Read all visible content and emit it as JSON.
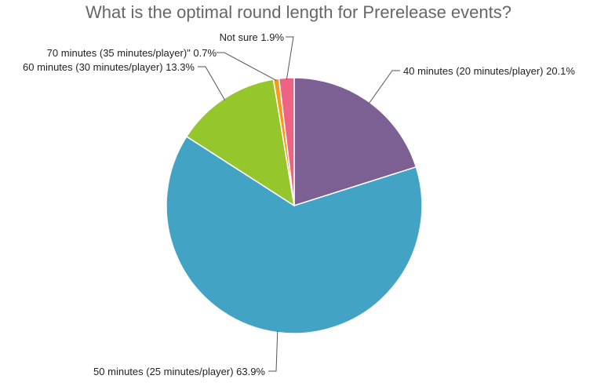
{
  "chart_data": {
    "type": "pie",
    "title": "What is the optimal round length for Prerelease events?",
    "slices": [
      {
        "label": "40 minutes (20 minutes/player)",
        "value": 20.1,
        "display": "20.1%",
        "color": "#7d6093"
      },
      {
        "label": "50 minutes (25 minutes/player)",
        "value": 63.9,
        "display": "63.9%",
        "color": "#42a3c4"
      },
      {
        "label": "60 minutes (30 minutes/player)",
        "value": 13.3,
        "display": "13.3%",
        "color": "#95c62b"
      },
      {
        "label": "70 minutes (35 minutes/player)\"",
        "value": 0.7,
        "display": "0.7%",
        "color": "#f59a1b"
      },
      {
        "label": "Not sure",
        "value": 1.9,
        "display": "1.9%",
        "color": "#ee6384"
      }
    ]
  }
}
